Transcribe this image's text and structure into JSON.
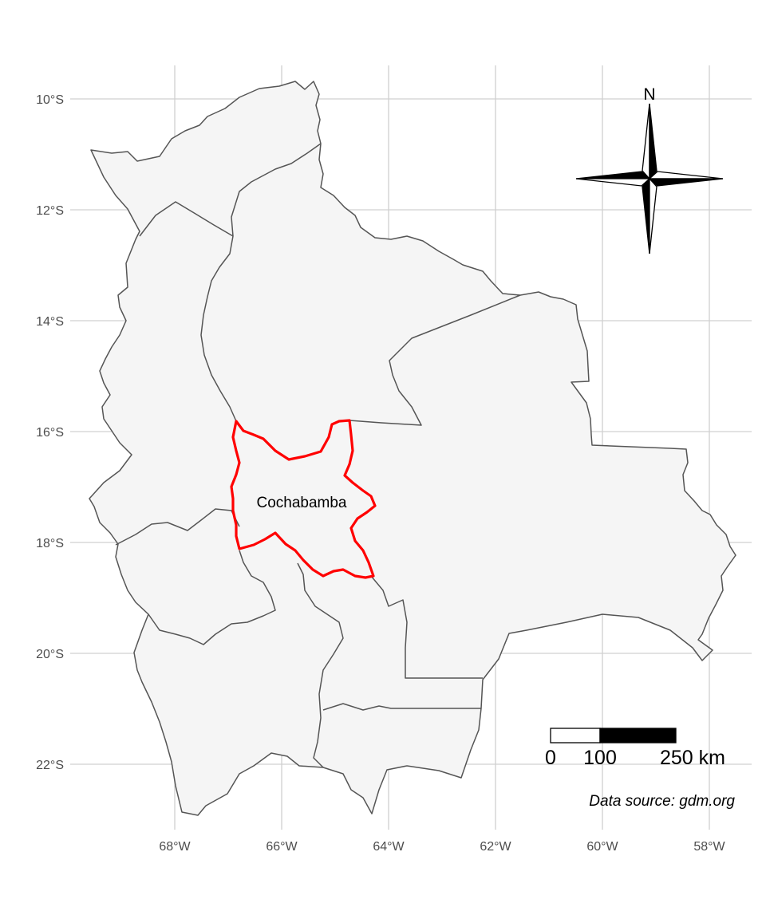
{
  "map": {
    "highlight_region": "Cochabamba",
    "highlight_color": "#ff0000",
    "land_fill": "#f5f5f5",
    "border_color": "#555555",
    "grid": true,
    "axes": {
      "x_ticks": [
        "68°W",
        "66°W",
        "64°W",
        "62°W",
        "60°W",
        "58°W"
      ],
      "y_ticks": [
        "10°S",
        "12°S",
        "14°S",
        "16°S",
        "18°S",
        "20°S",
        "22°S"
      ]
    }
  },
  "north_arrow": {
    "label": "N",
    "icon": "compass-rose-icon"
  },
  "scale_bar": {
    "labels": [
      "0",
      "100",
      "250 km"
    ]
  },
  "caption": "Data source: gdm.org"
}
